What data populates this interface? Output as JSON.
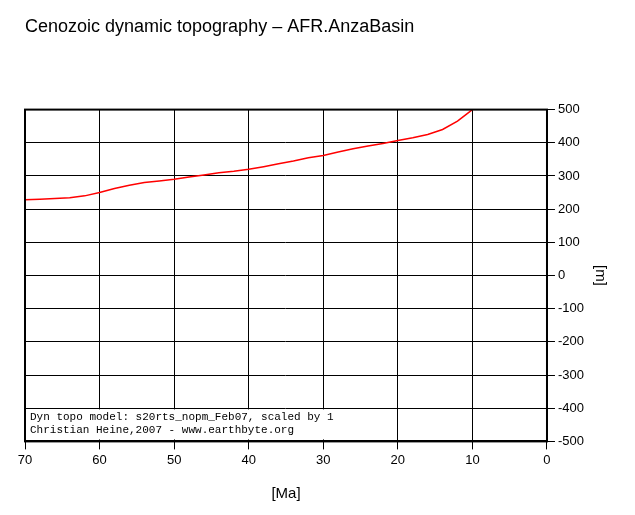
{
  "chart_data": {
    "type": "line",
    "title": "Cenozoic dynamic topography – AFR.AnzaBasin",
    "x_label": "[Ma]",
    "y_label": "[m]",
    "annotations": [
      "Dyn topo model: s20rts_nopm_Feb07, scaled by 1",
      "Christian Heine,2007 - www.earthbyte.org"
    ],
    "x": [
      70,
      68,
      66,
      64,
      62,
      60,
      58,
      56,
      54,
      52,
      50,
      48,
      46,
      44,
      42,
      40,
      38,
      36,
      34,
      32,
      30,
      28,
      26,
      24,
      22,
      20,
      18,
      16,
      14,
      12,
      10
    ],
    "series": [
      {
        "name": "AFR.AnzaBasin",
        "color": "#ff0000",
        "values": [
          228,
          230,
          232,
          234,
          240,
          250,
          262,
          272,
          280,
          285,
          290,
          297,
          303,
          310,
          314,
          320,
          328,
          337,
          345,
          355,
          362,
          372,
          382,
          390,
          398,
          407,
          415,
          425,
          440,
          465,
          500
        ]
      }
    ],
    "xlim": [
      70,
      0
    ],
    "xticks": [
      70,
      60,
      50,
      40,
      30,
      20,
      10,
      0
    ],
    "ylim": [
      -500,
      500
    ],
    "yticks": [
      -500,
      -400,
      -300,
      -200,
      -100,
      0,
      100,
      200,
      300,
      400,
      500
    ],
    "grid": true
  }
}
